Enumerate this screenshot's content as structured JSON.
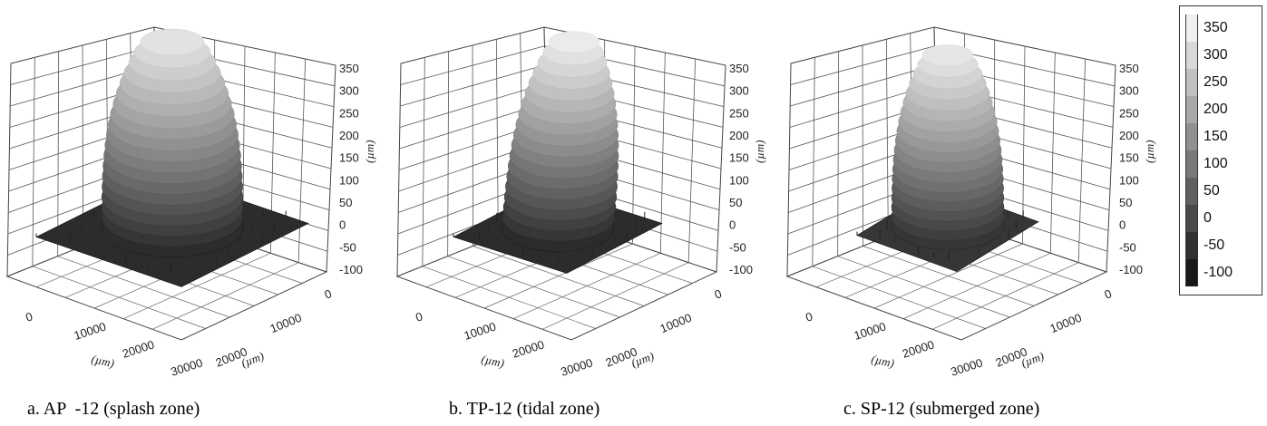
{
  "header_fragment": ", ...",
  "panels": [
    {
      "caption": "a. AP  -12 (splash zone)",
      "z_ticks": [
        "350",
        "300",
        "250",
        "200",
        "150",
        "100",
        "50",
        "0",
        "-50",
        "-100"
      ],
      "x_ticks": [
        "0",
        "10000",
        "20000",
        "30000"
      ],
      "y_ticks": [
        "0",
        "10000",
        "20000"
      ],
      "axis_unit": "(µm)"
    },
    {
      "caption": "b. TP-12 (tidal zone)",
      "z_ticks": [
        "350",
        "300",
        "250",
        "200",
        "150",
        "100",
        "50",
        "0",
        "-50",
        "-100"
      ],
      "x_ticks": [
        "0",
        "10000",
        "20000",
        "30000"
      ],
      "y_ticks": [
        "0",
        "10000",
        "20000"
      ],
      "axis_unit": "(µm)"
    },
    {
      "caption": "c. SP-12 (submerged zone)",
      "z_ticks": [
        "350",
        "300",
        "250",
        "200",
        "150",
        "100",
        "50",
        "0",
        "-50",
        "-100"
      ],
      "x_ticks": [
        "0",
        "10000",
        "20000",
        "30000"
      ],
      "y_ticks": [
        "0",
        "10000",
        "20000"
      ],
      "axis_unit": "(µm)"
    }
  ],
  "chart_data": [
    {
      "type": "surface",
      "title": "a. AP  -12 (splash zone)",
      "x_range": [
        0,
        30000
      ],
      "y_range": [
        0,
        30000
      ],
      "z_range": [
        -100,
        350
      ],
      "xlabel": "(µm)",
      "ylabel": "(µm)",
      "zlabel": "(µm)",
      "peak_height": 320,
      "base_height": -60,
      "grid": true
    },
    {
      "type": "surface",
      "title": "b. TP-12 (tidal zone)",
      "x_range": [
        0,
        30000
      ],
      "y_range": [
        0,
        30000
      ],
      "z_range": [
        -100,
        350
      ],
      "xlabel": "(µm)",
      "ylabel": "(µm)",
      "zlabel": "(µm)",
      "peak_height": 340,
      "base_height": -60,
      "grid": true
    },
    {
      "type": "surface",
      "title": "c. SP-12 (submerged zone)",
      "x_range": [
        0,
        30000
      ],
      "y_range": [
        0,
        30000
      ],
      "z_range": [
        -100,
        350
      ],
      "xlabel": "(µm)",
      "ylabel": "(µm)",
      "zlabel": "(µm)",
      "peak_height": 330,
      "base_height": -40,
      "grid": true
    }
  ],
  "colorbar": {
    "labels": [
      "350",
      "300",
      "250",
      "200",
      "150",
      "100",
      "50",
      "0",
      "-50",
      "-100"
    ]
  }
}
